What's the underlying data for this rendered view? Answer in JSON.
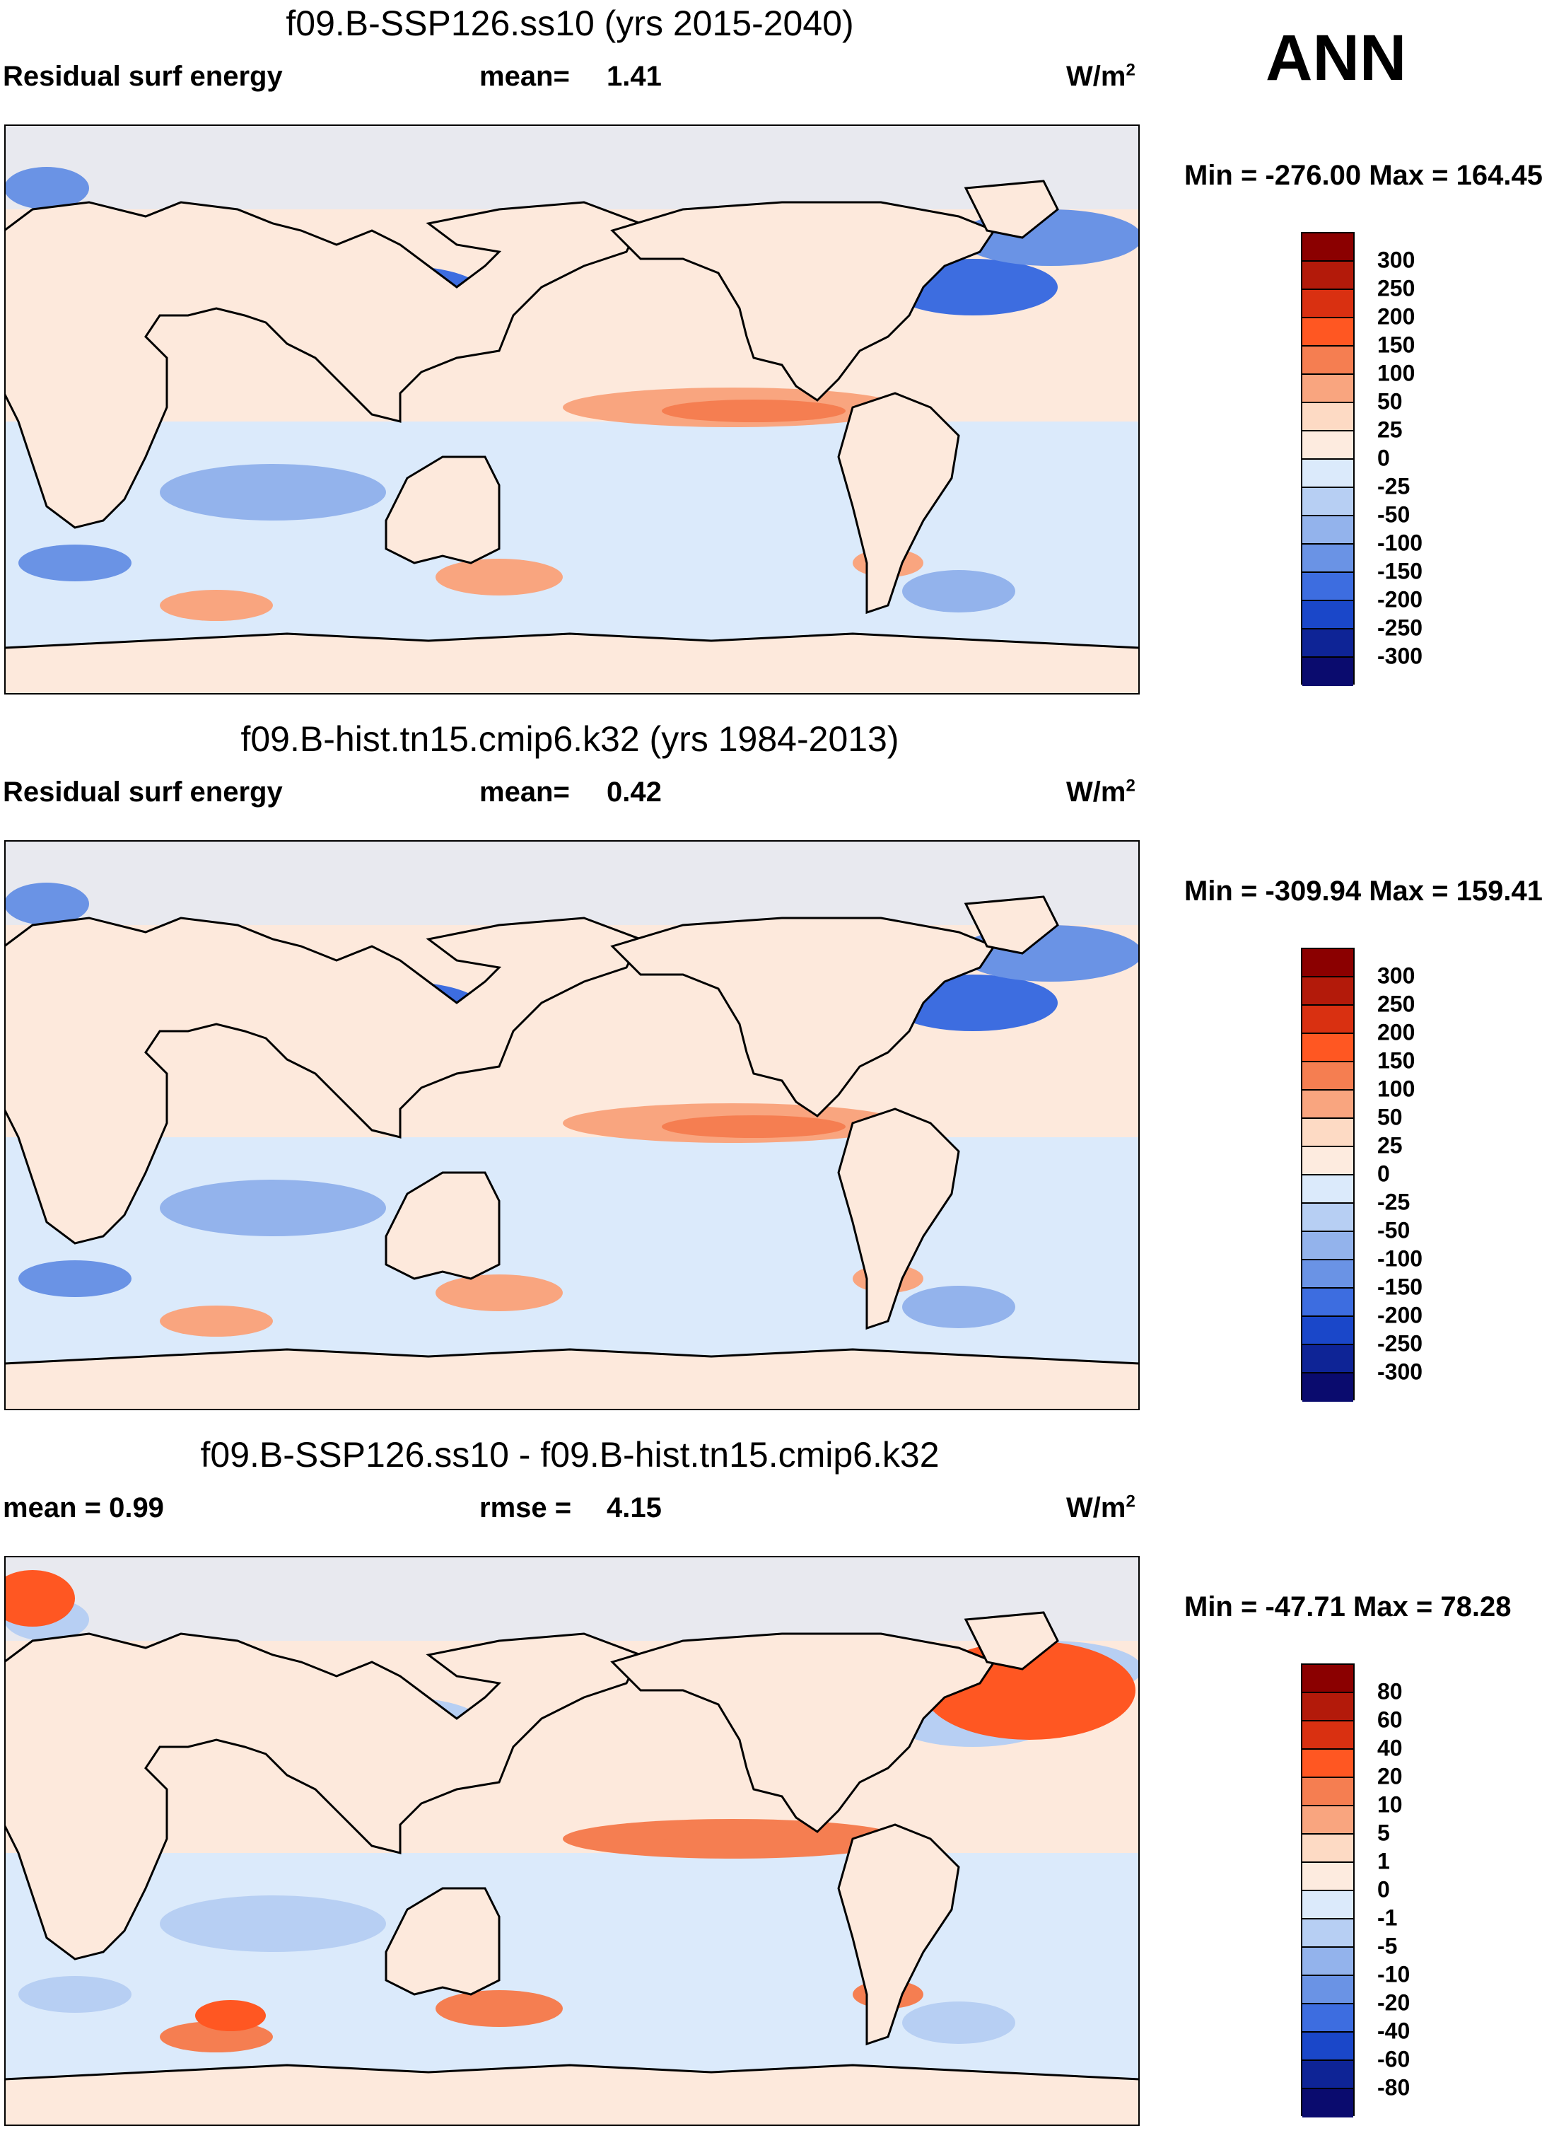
{
  "season": "ANN",
  "panels": [
    {
      "title": "f09.B-SSP126.ss10 (yrs 2015-2040)",
      "left_label": "Residual surf energy",
      "stat_key": "mean=",
      "stat_value": "1.41",
      "units": "W/m",
      "units_sup": "2",
      "minmax": "Min = -276.00 Max = 164.45",
      "levels": [
        "300",
        "250",
        "200",
        "150",
        "100",
        "50",
        "25",
        "0",
        "-25",
        "-50",
        "-100",
        "-150",
        "-200",
        "-250",
        "-300"
      ],
      "colors": [
        "#8b0000",
        "#b31a0a",
        "#d93011",
        "#ff5722",
        "#f57e51",
        "#f9a57f",
        "#fddac4",
        "#fdebdf",
        "#dbeafb",
        "#b7cff3",
        "#93b3ec",
        "#6a93e5",
        "#3d6de0",
        "#1a47c9",
        "#0e2496",
        "#0a0b6e"
      ]
    },
    {
      "title": "f09.B-hist.tn15.cmip6.k32 (yrs 1984-2013)",
      "left_label": "Residual surf energy",
      "stat_key": "mean=",
      "stat_value": "0.42",
      "units": "W/m",
      "units_sup": "2",
      "minmax": "Min = -309.94 Max = 159.41",
      "levels": [
        "300",
        "250",
        "200",
        "150",
        "100",
        "50",
        "25",
        "0",
        "-25",
        "-50",
        "-100",
        "-150",
        "-200",
        "-250",
        "-300"
      ],
      "colors": [
        "#8b0000",
        "#b31a0a",
        "#d93011",
        "#ff5722",
        "#f57e51",
        "#f9a57f",
        "#fddac4",
        "#fdebdf",
        "#dbeafb",
        "#b7cff3",
        "#93b3ec",
        "#6a93e5",
        "#3d6de0",
        "#1a47c9",
        "#0e2496",
        "#0a0b6e"
      ]
    },
    {
      "title": "f09.B-SSP126.ss10 - f09.B-hist.tn15.cmip6.k32",
      "left_label": "mean =   0.99",
      "stat_key": "rmse =",
      "stat_value": "4.15",
      "units": "W/m",
      "units_sup": "2",
      "minmax": "Min = -47.71 Max =  78.28",
      "levels": [
        "80",
        "60",
        "40",
        "20",
        "10",
        "5",
        "1",
        "0",
        "-1",
        "-5",
        "-10",
        "-20",
        "-40",
        "-60",
        "-80"
      ],
      "colors": [
        "#8b0000",
        "#b31a0a",
        "#d93011",
        "#ff5722",
        "#f57e51",
        "#f9a57f",
        "#fddac4",
        "#fdebdf",
        "#dbeafb",
        "#b7cff3",
        "#93b3ec",
        "#6a93e5",
        "#3d6de0",
        "#1a47c9",
        "#0e2496",
        "#0a0b6e"
      ]
    }
  ]
}
